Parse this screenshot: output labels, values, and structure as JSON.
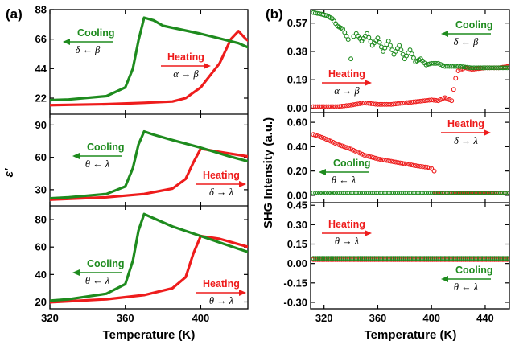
{
  "figure": {
    "labels": {
      "a": "(a)",
      "b": "(b)"
    },
    "left_xlabel": "Temperature (K)",
    "right_xlabel": "Temperature (K)",
    "left_ylabel": "ε′",
    "right_ylabel": "SHG Intensity (a.u.)",
    "colors": {
      "heating": "#ee1c1c",
      "cooling": "#1e8b1e",
      "axis": "#000000"
    }
  },
  "chart_data": [
    {
      "type": "line",
      "panel": "a",
      "row": 0,
      "xlim": [
        320,
        425
      ],
      "ylim": [
        10,
        88
      ],
      "xticks": [
        320,
        360,
        400
      ],
      "yticks": [
        22,
        44,
        66,
        88
      ],
      "series": [
        {
          "role": "heating",
          "x": [
            310,
            330,
            350,
            370,
            385,
            392,
            400,
            410,
            416,
            420,
            424,
            428
          ],
          "y": [
            16.5,
            17,
            17.5,
            18.5,
            19.5,
            22,
            30,
            48,
            66,
            72,
            66,
            62
          ]
        },
        {
          "role": "cooling",
          "x": [
            310,
            330,
            350,
            360,
            364,
            367,
            370,
            375,
            380,
            400,
            420,
            428
          ],
          "y": [
            20,
            21,
            23.5,
            30,
            44,
            65,
            82,
            80,
            76,
            70,
            63,
            58
          ]
        }
      ],
      "annotations": [
        {
          "role": "cooling",
          "word": "Cooling",
          "formula": "δ ← β"
        },
        {
          "role": "heating",
          "word": "Heating",
          "formula": "α → β"
        }
      ]
    },
    {
      "type": "line",
      "panel": "a",
      "row": 1,
      "xlim": [
        320,
        425
      ],
      "ylim": [
        15,
        100
      ],
      "xticks": [
        320,
        360,
        400
      ],
      "yticks": [
        30,
        60,
        90
      ],
      "series": [
        {
          "role": "heating",
          "x": [
            310,
            330,
            350,
            370,
            385,
            392,
            396,
            400,
            410,
            428
          ],
          "y": [
            20,
            21.5,
            23,
            26,
            31,
            40,
            55,
            68,
            65,
            60
          ]
        },
        {
          "role": "cooling",
          "x": [
            310,
            330,
            350,
            360,
            364,
            367,
            370,
            375,
            385,
            400,
            415,
            428
          ],
          "y": [
            21,
            23,
            26,
            33,
            50,
            72,
            84,
            81,
            76,
            69,
            61,
            55
          ]
        }
      ],
      "annotations": [
        {
          "role": "cooling",
          "word": "Cooling",
          "formula": "θ ← λ"
        },
        {
          "role": "heating",
          "word": "Heating",
          "formula": "δ → λ"
        }
      ]
    },
    {
      "type": "line",
      "panel": "a",
      "row": 2,
      "xlim": [
        320,
        425
      ],
      "ylim": [
        15,
        90
      ],
      "xticks": [
        320,
        360,
        400
      ],
      "yticks": [
        20,
        40,
        60,
        80
      ],
      "series": [
        {
          "role": "heating",
          "x": [
            310,
            330,
            350,
            370,
            385,
            392,
            396,
            400,
            410,
            428
          ],
          "y": [
            19,
            20.5,
            22,
            25,
            30,
            38,
            55,
            68,
            66,
            59
          ]
        },
        {
          "role": "cooling",
          "x": [
            310,
            330,
            350,
            360,
            364,
            367,
            370,
            375,
            385,
            400,
            415,
            428
          ],
          "y": [
            20,
            22,
            26,
            33,
            50,
            72,
            84,
            81,
            75,
            68,
            61,
            55
          ]
        }
      ],
      "annotations": [
        {
          "role": "cooling",
          "word": "Cooling",
          "formula": "θ ← λ"
        },
        {
          "role": "heating",
          "word": "Heating",
          "formula": "θ → λ"
        }
      ]
    },
    {
      "type": "scatter",
      "panel": "b",
      "row": 0,
      "xlim": [
        310,
        458
      ],
      "ylim": [
        -0.03,
        0.66
      ],
      "xticks": [
        320,
        360,
        400,
        440
      ],
      "yticks": [
        0.0,
        0.19,
        0.38,
        0.57
      ],
      "series": [
        {
          "role": "heating",
          "x": [
            312,
            320,
            330,
            340,
            350,
            360,
            370,
            380,
            390,
            400,
            405,
            410,
            415,
            418,
            420,
            425,
            430,
            440,
            450,
            458
          ],
          "y": [
            0.01,
            0.01,
            0.01,
            0.02,
            0.035,
            0.025,
            0.025,
            0.035,
            0.045,
            0.055,
            0.05,
            0.07,
            0.05,
            0.2,
            0.25,
            0.27,
            0.26,
            0.27,
            0.27,
            0.28
          ]
        },
        {
          "role": "cooling",
          "x": [
            312,
            318,
            322,
            326,
            330,
            334,
            338,
            340,
            342,
            344,
            348,
            352,
            356,
            360,
            364,
            368,
            372,
            376,
            380,
            384,
            388,
            392,
            396,
            400,
            405,
            410,
            420,
            430,
            440,
            450,
            458
          ],
          "y": [
            0.64,
            0.63,
            0.62,
            0.6,
            0.55,
            0.53,
            0.46,
            0.33,
            0.48,
            0.5,
            0.45,
            0.5,
            0.42,
            0.47,
            0.38,
            0.45,
            0.36,
            0.42,
            0.33,
            0.39,
            0.31,
            0.33,
            0.29,
            0.3,
            0.3,
            0.28,
            0.28,
            0.27,
            0.27,
            0.27,
            0.27
          ]
        }
      ],
      "annotations": [
        {
          "role": "cooling",
          "word": "Cooling",
          "formula": "δ ← β"
        },
        {
          "role": "heating",
          "word": "Heating",
          "formula": "α → β"
        }
      ]
    },
    {
      "type": "scatter",
      "panel": "b",
      "row": 1,
      "xlim": [
        310,
        458
      ],
      "ylim": [
        -0.06,
        0.68
      ],
      "xticks": [
        320,
        360,
        400,
        440
      ],
      "yticks": [
        0.0,
        0.2,
        0.4,
        0.6
      ],
      "series": [
        {
          "role": "heating",
          "x": [
            312,
            320,
            330,
            340,
            350,
            360,
            370,
            380,
            390,
            397,
            400,
            402,
            403,
            410,
            420,
            440,
            458
          ],
          "y": [
            0.5,
            0.47,
            0.42,
            0.38,
            0.33,
            0.3,
            0.28,
            0.26,
            0.24,
            0.23,
            0.22,
            0.2,
            0.02,
            0.02,
            0.02,
            0.02,
            0.02
          ]
        },
        {
          "role": "cooling",
          "x": [
            312,
            330,
            350,
            370,
            390,
            410,
            430,
            450,
            458
          ],
          "y": [
            0.02,
            0.02,
            0.02,
            0.02,
            0.02,
            0.02,
            0.02,
            0.02,
            0.02
          ]
        }
      ],
      "annotations": [
        {
          "role": "heating",
          "word": "Heating",
          "formula": "δ → λ"
        },
        {
          "role": "cooling",
          "word": "Cooling",
          "formula": "θ ← λ"
        }
      ]
    },
    {
      "type": "scatter",
      "panel": "b",
      "row": 2,
      "xlim": [
        310,
        458
      ],
      "ylim": [
        -0.35,
        0.47
      ],
      "xticks": [
        320,
        360,
        400,
        440
      ],
      "yticks": [
        -0.3,
        -0.15,
        0.0,
        0.15,
        0.3,
        0.45
      ],
      "series": [
        {
          "role": "heating",
          "x": [
            312,
            330,
            350,
            370,
            390,
            410,
            430,
            450,
            458
          ],
          "y": [
            0.03,
            0.03,
            0.03,
            0.03,
            0.03,
            0.03,
            0.03,
            0.03,
            0.03
          ]
        },
        {
          "role": "cooling",
          "x": [
            312,
            330,
            350,
            370,
            390,
            410,
            430,
            450,
            458
          ],
          "y": [
            0.04,
            0.04,
            0.04,
            0.04,
            0.04,
            0.04,
            0.04,
            0.04,
            0.04
          ]
        }
      ],
      "annotations": [
        {
          "role": "heating",
          "word": "Heating",
          "formula": "θ → λ"
        },
        {
          "role": "cooling",
          "word": "Cooling",
          "formula": "θ ← λ"
        }
      ]
    }
  ]
}
